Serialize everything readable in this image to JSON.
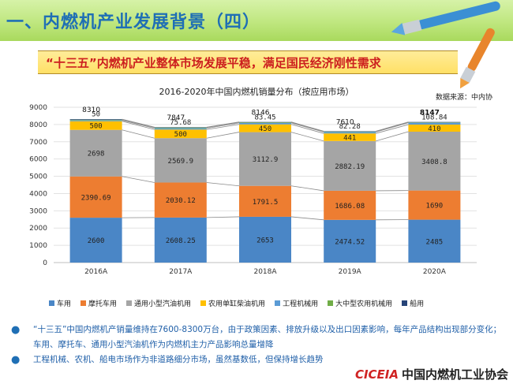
{
  "header": {
    "title": "一、内燃机产业发展背景（四）"
  },
  "banner": {
    "text": "“十三五”内燃机产业整体市场发展平稳，满足国民经济刚性需求"
  },
  "source_note": "数据来源：中内协",
  "chart_data": {
    "type": "bar",
    "stacked": true,
    "title": "2016-2020年中国内燃机销量分布（按应用市场）",
    "categories": [
      "2016A",
      "2017A",
      "2018A",
      "2019A",
      "2020A"
    ],
    "ylim": [
      0,
      9000
    ],
    "yticks": [
      0,
      1000,
      2000,
      3000,
      4000,
      5000,
      6000,
      7000,
      8000,
      9000
    ],
    "grid": true,
    "legend_position": "bottom",
    "series": [
      {
        "name": "车用",
        "color": "#4a86c6",
        "values": [
          2600,
          2608.25,
          2653,
          2474.52,
          2485
        ],
        "labels": [
          "2600",
          "2608.25",
          "2653",
          "2474.52",
          "2485"
        ]
      },
      {
        "name": "摩托车用",
        "color": "#ed7d31",
        "values": [
          2390.69,
          2030.12,
          1791.5,
          1686.08,
          1690
        ],
        "labels": [
          "2390.69",
          "2030.12",
          "1791.5",
          "1686.08",
          "1690"
        ]
      },
      {
        "name": "通用小型汽油机用",
        "color": "#a5a5a5",
        "values": [
          2698,
          2569.9,
          3112.9,
          2882.19,
          3408.8
        ],
        "labels": [
          "2698",
          "2569.9",
          "3112.9",
          "2882.19",
          "3408.8"
        ]
      },
      {
        "name": "农用单缸柴油机用",
        "color": "#ffc000",
        "values": [
          500,
          500,
          450,
          441,
          410
        ],
        "labels": [
          "500",
          "500",
          "450",
          "441",
          "410"
        ]
      },
      {
        "name": "工程机械用",
        "color": "#5b9bd5",
        "values": [
          50,
          75.68,
          83.45,
          82.28,
          108.84
        ],
        "labels": [
          "50",
          "75.68",
          "83.45",
          "82.28",
          "108.84"
        ]
      },
      {
        "name": "大中型农用机械用",
        "color": "#70ad47",
        "values": [
          36,
          40,
          35,
          22,
          20
        ],
        "labels": [
          "",
          "",
          "",
          "",
          ""
        ]
      },
      {
        "name": "船用",
        "color": "#264478",
        "values": [
          35,
          23,
          20,
          21,
          24
        ],
        "labels": [
          "",
          "",
          "",
          "",
          ""
        ]
      }
    ],
    "totals": [
      "8310",
      "7847",
      "8146",
      "7610",
      "8147"
    ]
  },
  "bullets": [
    "“十三五”中国内燃机产销量维持在7600-8300万台，由于政策因素、排放升级以及出口因素影响，每年产品结构出现部分变化；车用、摩托车、通用小型汽油机作为内燃机主力产品影响总量增降",
    "工程机械、农机、船电市场作为非道路细分市场，虽然基数低，但保持增长趋势"
  ],
  "footer": {
    "logo_text": "CICEIA",
    "org_name": "中国内燃机工业协会"
  }
}
